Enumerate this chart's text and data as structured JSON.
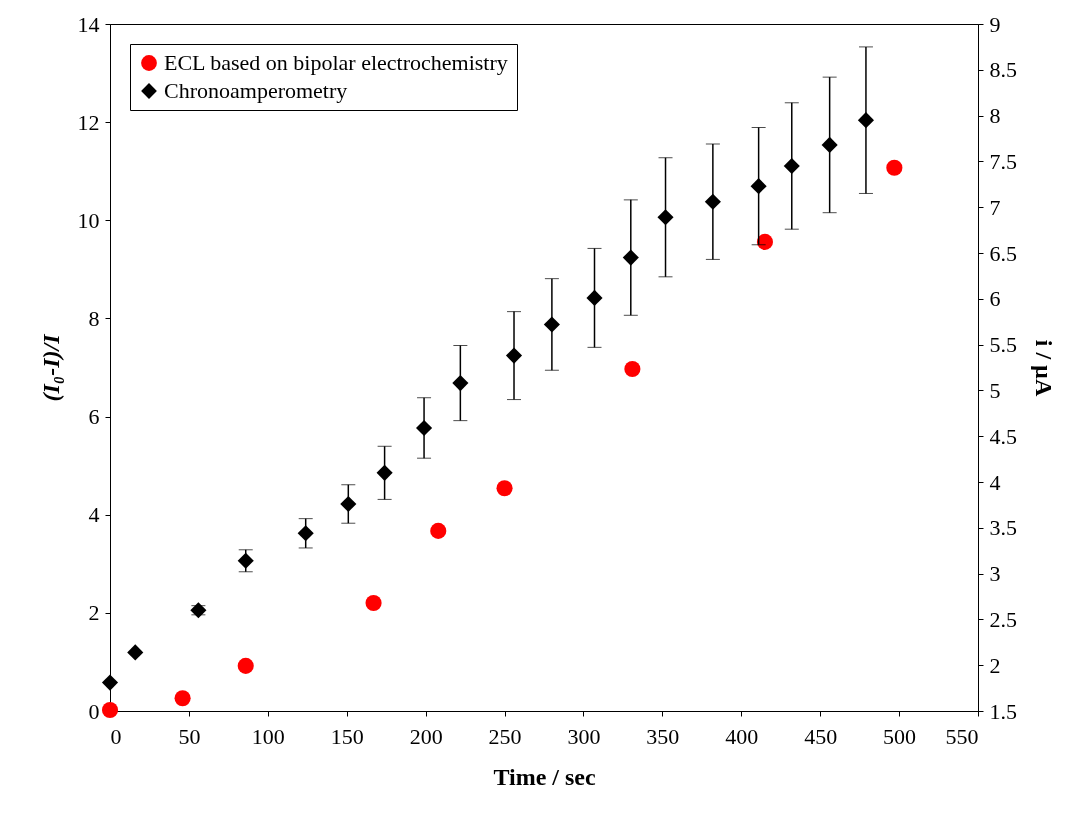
{
  "chart_data": {
    "type": "scatter",
    "xlabel": "Time / sec",
    "ylabel": "(I₀-I)/I",
    "y2label": "i / µA",
    "xlim": [
      0,
      550
    ],
    "xticks": [
      0,
      50,
      100,
      150,
      200,
      250,
      300,
      350,
      400,
      450,
      500,
      550
    ],
    "ylim": [
      0,
      14
    ],
    "yticks": [
      0,
      2,
      4,
      6,
      8,
      10,
      12,
      14
    ],
    "y2lim": [
      1.5,
      9
    ],
    "y2ticks": [
      1.5,
      2,
      2.5,
      3,
      3.5,
      4,
      4.5,
      5,
      5.5,
      6,
      6.5,
      7,
      7.5,
      8,
      8.5,
      9
    ],
    "legend": "top left",
    "grid": false,
    "series": [
      {
        "name": "ECL based on bipolar electrochemistry",
        "color": "#ff0000",
        "marker": "circle",
        "x": [
          0,
          46,
          86,
          167,
          208,
          250,
          331,
          415,
          497
        ],
        "values": [
          0.02,
          0.26,
          0.92,
          2.2,
          3.67,
          4.54,
          6.97,
          9.56,
          11.07
        ]
      },
      {
        "name": "Chronoamperometry",
        "color": "#000000",
        "marker": "diamond",
        "axis": "y2",
        "x": [
          0,
          16,
          56,
          86,
          124,
          151,
          174,
          199,
          222,
          256,
          280,
          307,
          330,
          352,
          382,
          411,
          432,
          456,
          479
        ],
        "values": [
          1.81,
          2.14,
          2.6,
          3.14,
          3.44,
          3.76,
          4.1,
          4.59,
          5.08,
          5.38,
          5.72,
          6.01,
          6.45,
          6.89,
          7.06,
          7.23,
          7.45,
          7.68,
          7.95
        ],
        "errors": [
          null,
          null,
          0.05,
          0.12,
          0.16,
          0.21,
          0.29,
          0.33,
          0.41,
          0.48,
          0.5,
          0.54,
          0.63,
          0.65,
          0.63,
          0.64,
          0.69,
          0.74,
          0.8
        ]
      }
    ]
  }
}
